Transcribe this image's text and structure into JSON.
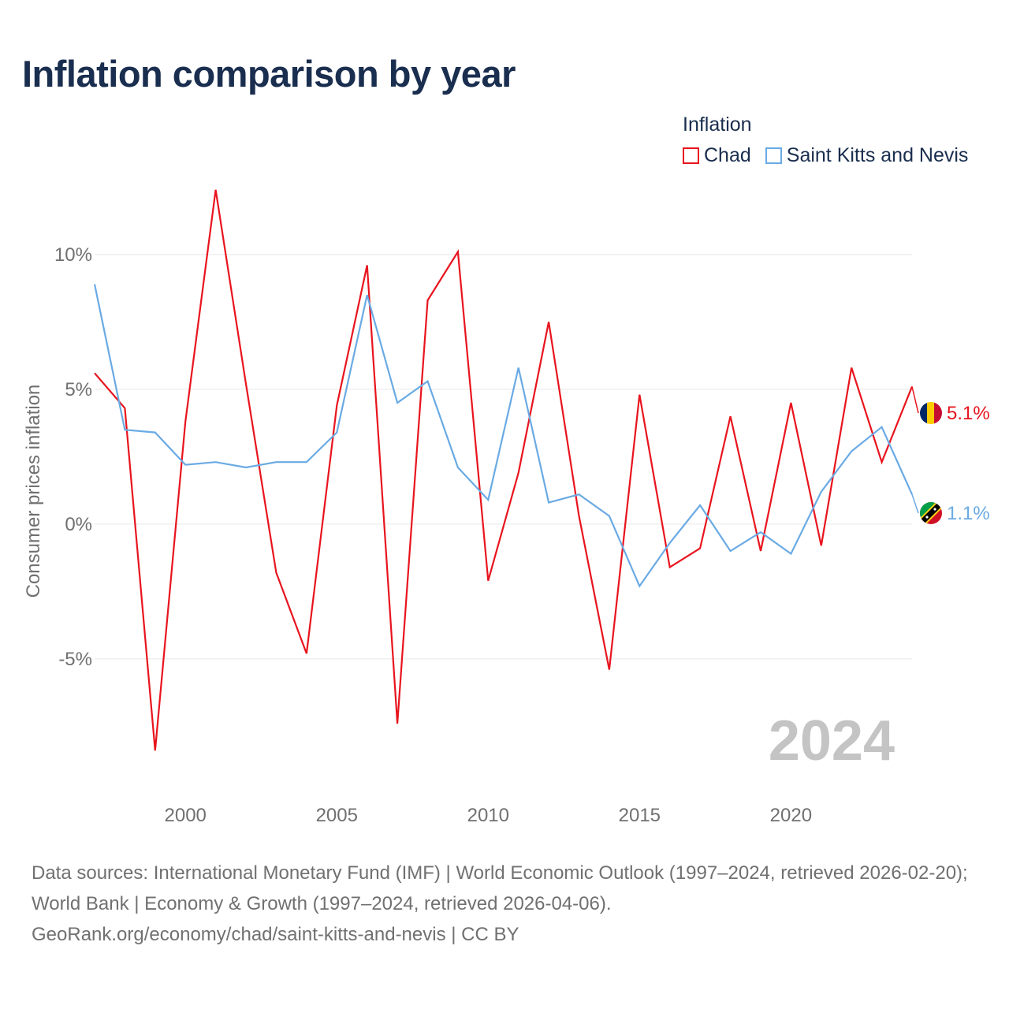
{
  "title": "Inflation comparison by year",
  "legend": {
    "title": "Inflation",
    "items": [
      {
        "label": "Chad",
        "color": "#e8141e"
      },
      {
        "label": "Saint Kitts and Nevis",
        "color": "#6aaae4"
      }
    ]
  },
  "year_watermark": "2024",
  "source": {
    "line1": "Data sources: International Monetary Fund (IMF) | World Economic Outlook (1997–2024, retrieved 2026-02-20); World Bank | Economy & Growth (1997–2024, retrieved 2026-04-06).",
    "line2": "GeoRank.org/economy/chad/saint-kitts-and-nevis | CC BY"
  },
  "chart_data": {
    "type": "line",
    "title": "Inflation comparison by year",
    "xlabel": "",
    "ylabel": "Consumer prices inflation",
    "x": [
      1997,
      1998,
      1999,
      2000,
      2001,
      2002,
      2003,
      2004,
      2005,
      2006,
      2007,
      2008,
      2009,
      2010,
      2011,
      2012,
      2013,
      2014,
      2015,
      2016,
      2017,
      2018,
      2019,
      2020,
      2021,
      2022,
      2023,
      2024
    ],
    "xlim": [
      1997,
      2024
    ],
    "ylim": [
      -9.8,
      13.3
    ],
    "x_ticks": [
      2000,
      2005,
      2010,
      2015,
      2020
    ],
    "y_ticks": [
      -5,
      0,
      5,
      10
    ],
    "y_tick_labels": [
      "-5%",
      "0%",
      "5%",
      "10%"
    ],
    "grid": true,
    "series": [
      {
        "name": "Chad",
        "color": "#e8141e",
        "values": [
          5.6,
          4.3,
          -8.4,
          3.8,
          12.4,
          5.2,
          -1.8,
          -4.8,
          4.4,
          9.6,
          -7.4,
          8.3,
          10.1,
          -2.1,
          1.9,
          7.5,
          0.3,
          -5.4,
          4.8,
          -1.6,
          -0.9,
          4.0,
          -1.0,
          4.5,
          -0.8,
          5.8,
          2.3,
          5.1
        ],
        "end_label": "5.1%"
      },
      {
        "name": "Saint Kitts and Nevis",
        "color": "#6aaae4",
        "values": [
          8.9,
          3.5,
          3.4,
          2.2,
          2.3,
          2.1,
          2.3,
          2.3,
          3.4,
          8.5,
          4.5,
          5.3,
          2.1,
          0.9,
          5.8,
          0.8,
          1.1,
          0.3,
          -2.3,
          -0.7,
          0.7,
          -1.0,
          -0.3,
          -1.1,
          1.2,
          2.7,
          3.6,
          1.1
        ],
        "end_label": "1.1%"
      }
    ]
  }
}
